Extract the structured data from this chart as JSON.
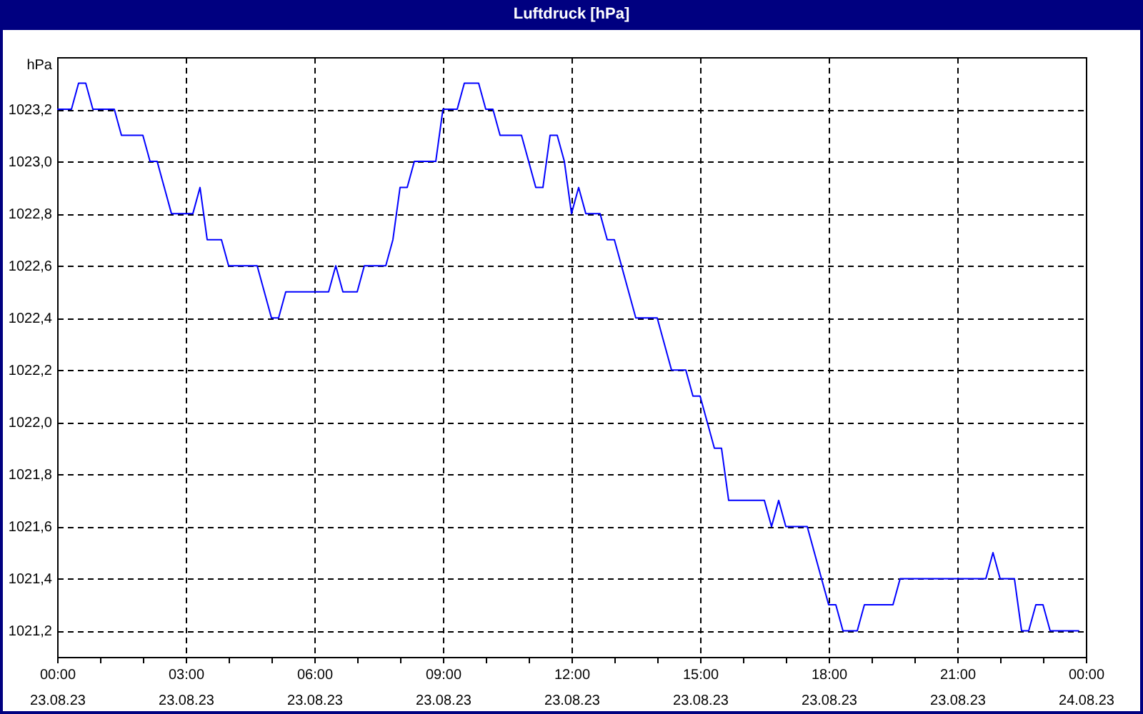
{
  "chart_data": {
    "type": "line",
    "title": "Luftdruck [hPa]",
    "ylabel": "hPa",
    "x": [
      "--08-23T00:00",
      "--08-23T00:20",
      "--08-23T00:30",
      "--08-23T00:40",
      "--08-23T00:50",
      "--08-23T01:20",
      "--08-23T01:30",
      "--08-23T02:00",
      "--08-23T02:10",
      "--08-23T02:20",
      "--08-23T02:30",
      "--08-23T02:40",
      "--08-23T03:10",
      "--08-23T03:20",
      "--08-23T03:30",
      "--08-23T03:50",
      "--08-23T04:00",
      "--08-23T04:40",
      "--08-23T04:50",
      "--08-23T05:00",
      "--08-23T05:10",
      "--08-23T05:20",
      "--08-23T06:20",
      "--08-23T06:30",
      "--08-23T06:40",
      "--08-23T07:00",
      "--08-23T07:10",
      "--08-23T07:40",
      "--08-23T07:50",
      "--08-23T08:00",
      "--08-23T08:10",
      "--08-23T08:20",
      "--08-23T08:50",
      "--08-23T09:00",
      "--08-23T09:20",
      "--08-23T09:30",
      "--08-23T09:50",
      "--08-23T10:00",
      "--08-23T10:10",
      "--08-23T10:20",
      "--08-23T10:50",
      "--08-23T11:00",
      "--08-23T11:10",
      "--08-23T11:20",
      "--08-23T11:30",
      "--08-23T11:40",
      "--08-23T11:50",
      "--08-23T12:00",
      "--08-23T12:10",
      "--08-23T12:20",
      "--08-23T12:40",
      "--08-23T12:50",
      "--08-23T13:00",
      "--08-23T13:10",
      "--08-23T13:20",
      "--08-23T13:30",
      "--08-23T14:00",
      "--08-23T14:10",
      "--08-23T14:20",
      "--08-23T14:40",
      "--08-23T14:50",
      "--08-23T15:00",
      "--08-23T15:10",
      "--08-23T15:20",
      "--08-23T15:30",
      "--08-23T15:40",
      "--08-23T16:30",
      "--08-23T16:40",
      "--08-23T16:50",
      "--08-23T17:00",
      "--08-23T17:30",
      "--08-23T17:40",
      "--08-23T17:50",
      "--08-23T18:00",
      "--08-23T18:10",
      "--08-23T18:20",
      "--08-23T18:40",
      "--08-23T18:50",
      "--08-23T19:30",
      "--08-23T19:40",
      "--08-23T21:40",
      "--08-23T21:50",
      "--08-23T22:00",
      "--08-23T22:20",
      "--08-23T22:30",
      "--08-23T22:40",
      "--08-23T22:50",
      "--08-23T23:00",
      "--08-23T23:10",
      "--08-23T23:50"
    ],
    "series": [
      {
        "color": "#0000ff",
        "values": [
          1023.2,
          1023.2,
          1023.3,
          1023.3,
          1023.2,
          1023.2,
          1023.1,
          1023.1,
          1023,
          1023,
          1022.9,
          1022.8,
          1022.8,
          1022.9,
          1022.7,
          1022.7,
          1022.6,
          1022.6,
          1022.5,
          1022.4,
          1022.4,
          1022.5,
          1022.5,
          1022.6,
          1022.5,
          1022.5,
          1022.6,
          1022.6,
          1022.7,
          1022.9,
          1022.9,
          1023,
          1023,
          1023.2,
          1023.2,
          1023.3,
          1023.3,
          1023.2,
          1023.2,
          1023.1,
          1023.1,
          1023,
          1022.9,
          1022.9,
          1023.1,
          1023.1,
          1023,
          1022.8,
          1022.9,
          1022.8,
          1022.8,
          1022.7,
          1022.7,
          1022.6,
          1022.5,
          1022.4,
          1022.4,
          1022.3,
          1022.2,
          1022.2,
          1022.1,
          1022.1,
          1022,
          1021.9,
          1021.9,
          1021.7,
          1021.7,
          1021.6,
          1021.7,
          1021.6,
          1021.6,
          1021.5,
          1021.4,
          1021.3,
          1021.3,
          1021.2,
          1021.2,
          1021.3,
          1021.3,
          1021.4,
          1021.4,
          1021.5,
          1021.4,
          1021.4,
          1021.2,
          1021.2,
          1021.3,
          1021.3,
          1021.2,
          1021.2
        ]
      }
    ],
    "xlim": [
      "--08-23T00:00",
      "--08-24T00:00"
    ],
    "xticks": [
      {
        "value": "--08-23T00:00",
        "label": "00:00\n23.08.23"
      },
      {
        "value": "--08-23T01:00",
        "label": null
      },
      {
        "value": "--08-23T02:00",
        "label": null
      },
      {
        "value": "--08-23T03:00",
        "label": "03:00\n23.08.23"
      },
      {
        "value": "--08-23T04:00",
        "label": null
      },
      {
        "value": "--08-23T05:00",
        "label": null
      },
      {
        "value": "--08-23T06:00",
        "label": "06:00\n23.08.23"
      },
      {
        "value": "--08-23T07:00",
        "label": null
      },
      {
        "value": "--08-23T08:00",
        "label": null
      },
      {
        "value": "--08-23T09:00",
        "label": "09:00\n23.08.23"
      },
      {
        "value": "--08-23T10:00",
        "label": null
      },
      {
        "value": "--08-23T11:00",
        "label": null
      },
      {
        "value": "--08-23T12:00",
        "label": "12:00\n23.08.23"
      },
      {
        "value": "--08-23T13:00",
        "label": null
      },
      {
        "value": "--08-23T14:00",
        "label": null
      },
      {
        "value": "--08-23T15:00",
        "label": "15:00\n23.08.23"
      },
      {
        "value": "--08-23T16:00",
        "label": null
      },
      {
        "value": "--08-23T17:00",
        "label": null
      },
      {
        "value": "--08-23T18:00",
        "label": "18:00\n23.08.23"
      },
      {
        "value": "--08-23T19:00",
        "label": null
      },
      {
        "value": "--08-23T20:00",
        "label": null
      },
      {
        "value": "--08-23T21:00",
        "label": "21:00\n23.08.23"
      },
      {
        "value": "--08-23T22:00",
        "label": null
      },
      {
        "value": "--08-23T23:00",
        "label": null
      },
      {
        "value": "--08-24T00:00",
        "label": "00:00\n24.08.23"
      }
    ],
    "ylim": [
      1021.1,
      1023.4
    ],
    "yticks": [
      {
        "value": 1021.2,
        "label": "1021,2"
      },
      {
        "value": 1021.4,
        "label": "1021,4"
      },
      {
        "value": 1021.6,
        "label": "1021,6"
      },
      {
        "value": 1021.8,
        "label": "1021,8"
      },
      {
        "value": 1022,
        "label": "1022,0"
      },
      {
        "value": 1022.2,
        "label": "1022,2"
      },
      {
        "value": 1022.4,
        "label": "1022,4"
      },
      {
        "value": 1022.6,
        "label": "1022,6"
      },
      {
        "value": 1022.8,
        "label": "1022,8"
      },
      {
        "value": 1023,
        "label": "1023,0"
      },
      {
        "value": 1023.2,
        "label": "1023,2"
      }
    ],
    "grid": true,
    "line_style": "solid"
  }
}
